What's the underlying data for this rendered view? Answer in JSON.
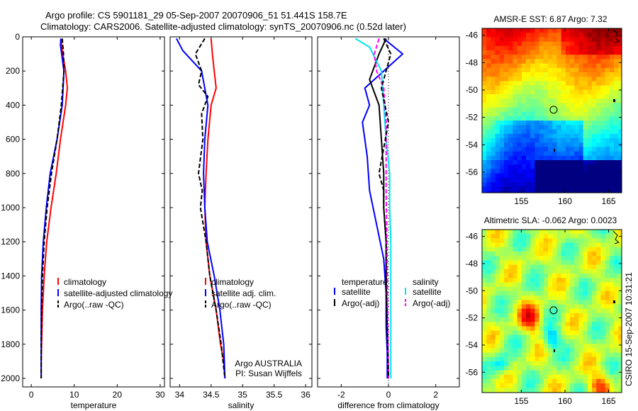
{
  "header": {
    "line1": "Argo profile: CS 5901181_29 05-Sep-2007 20070906_51 51.441S 158.7E",
    "line2": "Climatology: CARS2006. Satellite-adjusted climatology: synTS_20070906.nc (0.52d later)"
  },
  "footer_stamp": "CSIRO 15-Sep-2007 10:31:21",
  "colors": {
    "climatology": "#ff0000",
    "satellite": "#0000ff",
    "argo": "#000000",
    "sat_salinity": "#00e5ee",
    "argo_adj_salinity": "#ff00ff"
  },
  "chart_data": [
    {
      "type": "line",
      "panel": "temperature",
      "xlabel": "temperature",
      "ylabel": "",
      "xlim": [
        -2,
        31
      ],
      "ylim": [
        2050,
        0
      ],
      "xticks": [
        0,
        10,
        20,
        30
      ],
      "yticks": [
        0,
        200,
        400,
        600,
        800,
        1000,
        1200,
        1400,
        1600,
        1800,
        2000
      ],
      "legend": {
        "placement": "lower-right",
        "entries": [
          "climatology",
          "satellite-adjusted climatology",
          "Argo(..raw -QC)"
        ]
      },
      "series": [
        {
          "name": "climatology",
          "style": "solid",
          "color": "#ff0000",
          "x": [
            6.9,
            7.3,
            8.0,
            8.4,
            8.0,
            6.8,
            5.8,
            4.6,
            3.6,
            3.0,
            2.6,
            2.4,
            2.3,
            2.3
          ],
          "y": [
            10,
            100,
            200,
            300,
            400,
            600,
            800,
            1000,
            1200,
            1400,
            1600,
            1800,
            1900,
            2000
          ]
        },
        {
          "name": "satellite-adjusted climatology",
          "style": "solid",
          "color": "#0000ff",
          "x": [
            6.9,
            6.8,
            7.6,
            7.2,
            6.0,
            4.4,
            3.5,
            2.8,
            2.4,
            2.3,
            2.3
          ],
          "y": [
            10,
            50,
            200,
            400,
            600,
            800,
            1000,
            1200,
            1400,
            1600,
            2000
          ]
        },
        {
          "name": "Argo(..raw -QC)",
          "style": "dashed",
          "color": "#000000",
          "x": [
            7.2,
            7.5,
            7.6,
            7.0,
            6.0,
            4.7,
            3.7,
            3.0,
            2.6,
            2.4,
            2.3,
            2.3
          ],
          "y": [
            10,
            100,
            200,
            400,
            600,
            800,
            1000,
            1200,
            1400,
            1600,
            1800,
            2000
          ]
        }
      ]
    },
    {
      "type": "line",
      "panel": "salinity",
      "xlabel": "salinity",
      "ylabel": "",
      "xlim": [
        33.85,
        36.1
      ],
      "ylim": [
        2050,
        0
      ],
      "xticks": [
        34,
        34.5,
        35,
        35.5,
        36
      ],
      "yticks": [],
      "legend": {
        "placement": "lower-right",
        "entries": [
          "climatology",
          "satellite adj. clim.",
          "Argo(..raw -QC)"
        ]
      },
      "annotations": [
        "Argo AUSTRALIA",
        "PI: Susan Wijffels"
      ],
      "series": [
        {
          "name": "climatology",
          "style": "solid",
          "color": "#ff0000",
          "x": [
            34.5,
            34.52,
            34.55,
            34.58,
            34.5,
            34.45,
            34.42,
            34.4,
            34.42,
            34.48,
            34.58,
            34.65,
            34.7,
            34.72
          ],
          "y": [
            10,
            100,
            200,
            300,
            400,
            600,
            800,
            1000,
            1200,
            1400,
            1600,
            1800,
            1900,
            2000
          ]
        },
        {
          "name": "satellite adj. clim.",
          "style": "solid",
          "color": "#0000ff",
          "x": [
            33.95,
            34.05,
            34.35,
            34.45,
            34.4,
            34.38,
            34.4,
            34.44,
            34.55,
            34.64,
            34.7,
            34.72
          ],
          "y": [
            10,
            80,
            200,
            400,
            600,
            800,
            1000,
            1200,
            1400,
            1600,
            1800,
            2000
          ]
        },
        {
          "name": "Argo(..raw -QC)",
          "style": "dashed",
          "color": "#000000",
          "x": [
            34.4,
            34.25,
            34.35,
            34.3,
            34.45,
            34.35,
            34.37,
            34.3,
            34.36,
            34.33,
            34.42,
            34.48,
            34.58,
            34.66,
            34.72
          ],
          "y": [
            10,
            100,
            200,
            280,
            350,
            450,
            600,
            800,
            900,
            1000,
            1200,
            1400,
            1600,
            1800,
            2000
          ]
        }
      ]
    },
    {
      "type": "line",
      "panel": "difference",
      "xlabel": "difference from climatology",
      "ylabel": "",
      "xlim": [
        -3,
        3
      ],
      "ylim": [
        2050,
        0
      ],
      "xticks": [
        -2,
        0,
        2
      ],
      "yticks": [],
      "legend": {
        "placement": "lower",
        "group_titles": [
          "temperature",
          "salinity"
        ],
        "entries": [
          "satellite",
          "Argo(-adj)",
          "satellite",
          "Argo(-adj)"
        ]
      },
      "series": [
        {
          "name": "satellite",
          "quantity": "temperature",
          "style": "solid",
          "color": "#0000ff",
          "x": [
            -0.2,
            0.6,
            -0.2,
            -1.0,
            -0.8,
            -1.1,
            -0.9,
            -0.8,
            -0.5,
            -0.2,
            -0.1,
            -0.1,
            -0.05,
            -0.05
          ],
          "y": [
            10,
            100,
            200,
            300,
            400,
            500,
            700,
            900,
            1100,
            1300,
            1500,
            1700,
            1850,
            2000
          ]
        },
        {
          "name": "Argo(-adj)",
          "quantity": "temperature",
          "style": "solid",
          "color": "#000000",
          "x": [
            -0.1,
            -0.4,
            -0.8,
            -0.4,
            -0.3,
            -0.2,
            -0.2,
            -0.1,
            -0.1,
            -0.05,
            0
          ],
          "y": [
            10,
            100,
            250,
            400,
            600,
            800,
            1000,
            1200,
            1400,
            1700,
            2000
          ]
        },
        {
          "name": "satellite",
          "quantity": "salinity",
          "style": "solid",
          "color": "#00e5ee",
          "x": [
            -1.4,
            -0.8,
            -0.3,
            -0.2,
            -0.1,
            0.05,
            0.05,
            0.1,
            0.1,
            0.1
          ],
          "y": [
            10,
            60,
            200,
            400,
            600,
            800,
            1000,
            1200,
            1500,
            2000
          ]
        },
        {
          "name": "Argo(-adj)",
          "quantity": "salinity",
          "style": "dashed",
          "color": "#ff00ff",
          "x": [
            -0.4,
            -0.6,
            -0.5,
            -0.2,
            -0.1,
            -0.1,
            -0.05,
            0
          ],
          "y": [
            10,
            100,
            200,
            300,
            500,
            900,
            1400,
            2000
          ]
        },
        {
          "name": "Argo(-adj) (difference, black dashed)",
          "style": "dashed",
          "color": "#000000",
          "x": [
            -0.2,
            0.1,
            -0.3,
            0.0,
            -0.4,
            -0.2,
            -0.2,
            -0.1,
            -0.1,
            0
          ],
          "y": [
            10,
            100,
            300,
            500,
            800,
            900,
            1000,
            1200,
            1500,
            2000
          ]
        }
      ]
    },
    {
      "type": "heatmap",
      "panel": "map-sst",
      "title": "AMSR-E SST: 6.87 Argo: 7.32",
      "xlim": [
        150.5,
        166.5
      ],
      "ylim": [
        -57.5,
        -45.5
      ],
      "xticks": [
        155,
        160,
        165
      ],
      "yticks": [
        -46,
        -48,
        -50,
        -52,
        -54,
        -56
      ],
      "marker": {
        "lon": 158.7,
        "lat": -51.441
      }
    },
    {
      "type": "heatmap",
      "panel": "map-sla",
      "title": "Altimetric SLA: -0.062 Argo: 0.0023",
      "xlim": [
        150.5,
        166.5
      ],
      "ylim": [
        -57.5,
        -45.5
      ],
      "xticks": [
        155,
        160,
        165
      ],
      "yticks": [
        -46,
        -48,
        -50,
        -52,
        -54,
        -56
      ],
      "marker": {
        "lon": 158.7,
        "lat": -51.441
      }
    }
  ]
}
